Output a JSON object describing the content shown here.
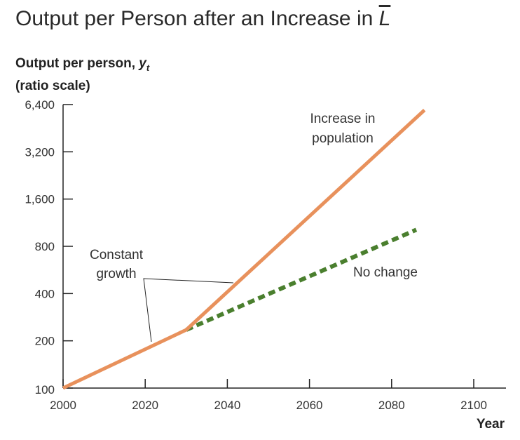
{
  "chart_data": {
    "type": "line",
    "title": "Output per Person after an Increase in",
    "title_symbol": "L",
    "ylabel_line1": "Output per person,",
    "ylabel_symbol": "y",
    "ylabel_subscript": "t",
    "ylabel_line2": "(ratio scale)",
    "xlabel": "Year",
    "y_scale": "log2",
    "ylim": [
      100,
      6400
    ],
    "xlim": [
      2000,
      2100
    ],
    "x_ticks": [
      2000,
      2020,
      2040,
      2060,
      2080,
      2100
    ],
    "y_ticks": [
      100,
      200,
      400,
      800,
      1600,
      3200,
      6400
    ],
    "x_tick_labels": [
      "2000",
      "2020",
      "2040",
      "2060",
      "2080",
      "2100"
    ],
    "y_tick_labels": [
      "100",
      "200",
      "400",
      "800",
      "1,600",
      "3,200",
      "6,400"
    ],
    "series": [
      {
        "id": "increase",
        "color": "#e8915c",
        "style": "solid",
        "points": [
          [
            2000,
            100
          ],
          [
            2030,
            235
          ],
          [
            2088,
            5900
          ]
        ]
      },
      {
        "id": "nochange",
        "color": "#4a7f2e",
        "style": "dashed",
        "points": [
          [
            2030,
            235
          ],
          [
            2086,
            1020
          ]
        ]
      }
    ],
    "annotations": {
      "increase_line1": "Increase in",
      "increase_line2": "population",
      "nochange": "No change",
      "constant_line1": "Constant",
      "constant_line2": "growth"
    }
  }
}
